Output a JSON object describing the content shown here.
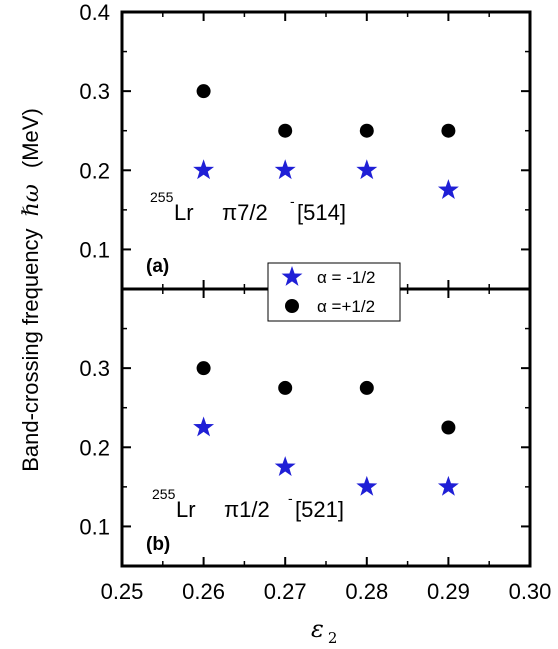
{
  "chart_data": [
    {
      "type": "scatter",
      "panel_label": "(a)",
      "nucleus_mass": "255",
      "nucleus_element": "Lr",
      "orbital": "π7/2",
      "orbital_sup": "-",
      "orbital_nilsson": "[514]",
      "ylim": [
        0.05,
        0.4
      ],
      "yticks": [
        0.1,
        0.2,
        0.3,
        0.4
      ],
      "ytick_labels": [
        "0.1",
        "0.2",
        "0.3",
        "0.4"
      ],
      "series": [
        {
          "legend_index": 0,
          "marker": "star",
          "color": "#1f1fd6",
          "x": [
            0.26,
            0.27,
            0.28,
            0.29
          ],
          "y": [
            0.2,
            0.2,
            0.2,
            0.175
          ]
        },
        {
          "legend_index": 1,
          "marker": "circle",
          "color": "#000000",
          "x": [
            0.26,
            0.27,
            0.28,
            0.29
          ],
          "y": [
            0.3,
            0.25,
            0.25,
            0.25
          ]
        }
      ]
    },
    {
      "type": "scatter",
      "panel_label": "(b)",
      "nucleus_mass": "255",
      "nucleus_element": "Lr",
      "orbital": "π1/2",
      "orbital_sup": "-",
      "orbital_nilsson": "[521]",
      "ylim": [
        0.05,
        0.4
      ],
      "yticks": [
        0.1,
        0.2,
        0.3
      ],
      "ytick_labels": [
        "0.1",
        "0.2",
        "0.3"
      ],
      "series": [
        {
          "legend_index": 0,
          "marker": "star",
          "color": "#1f1fd6",
          "x": [
            0.26,
            0.27,
            0.28,
            0.29
          ],
          "y": [
            0.225,
            0.175,
            0.15,
            0.15
          ]
        },
        {
          "legend_index": 1,
          "marker": "circle",
          "color": "#000000",
          "x": [
            0.26,
            0.27,
            0.28,
            0.29
          ],
          "y": [
            0.3,
            0.275,
            0.275,
            0.225
          ]
        }
      ]
    }
  ],
  "shared_axes": {
    "xlim": [
      0.25,
      0.3
    ],
    "xticks": [
      0.25,
      0.26,
      0.27,
      0.28,
      0.29,
      0.3
    ],
    "xtick_labels": [
      "0.25",
      "0.26",
      "0.27",
      "0.28",
      "0.29",
      "0.30"
    ],
    "xlabel_main": "ε",
    "xlabel_sub": "2",
    "ylabel_text": "Band-crossing frequency",
    "ylabel_symbol": "ℏω",
    "ylabel_unit": "(MeV)"
  },
  "legend": {
    "placement": "center, straddling panel boundary",
    "entries": [
      {
        "label": "α = -1/2",
        "marker": "star",
        "color": "#1f1fd6"
      },
      {
        "label": "α =+1/2",
        "marker": "circle",
        "color": "#000000"
      }
    ]
  }
}
